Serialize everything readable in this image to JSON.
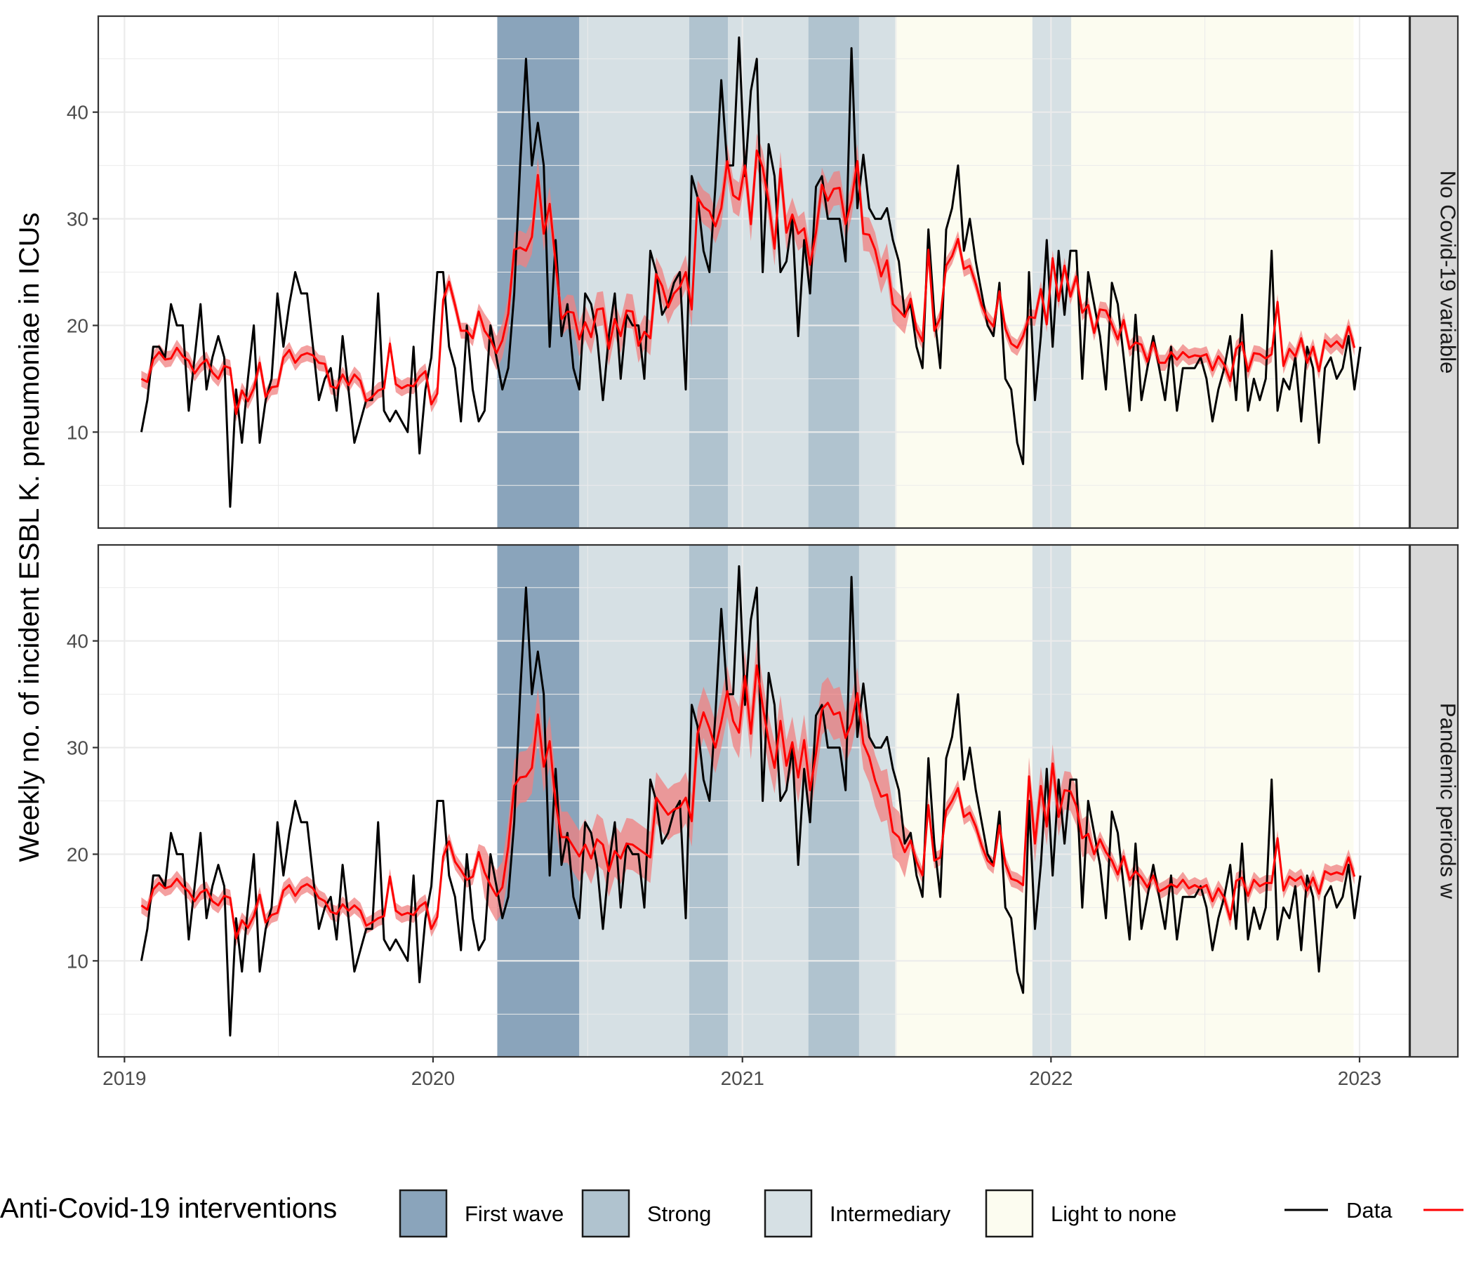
{
  "chart_data": {
    "type": "line",
    "ylabel": "Weekly no. of incident ESBL K. pneumoniae in ICUs",
    "xlabel": "",
    "x_ticks": [
      "2019",
      "2020",
      "2021",
      "2022",
      "2023"
    ],
    "x_range": [
      "2018-12-01",
      "2023-03-01"
    ],
    "y_ticks": [
      10,
      20,
      30,
      40
    ],
    "ylim": [
      1,
      49
    ],
    "grid": true,
    "legend_position": "bottom",
    "colors": {
      "data": "#000000",
      "fit": "#ff0000",
      "fit_band": "#f08080",
      "first_wave": "#8aa4bb",
      "strong": "#b0c3cf",
      "intermediary": "#d6e0e4",
      "light": "#fcfcf0"
    },
    "legend": {
      "title": "Anti-Covid-19 interventions",
      "items": [
        {
          "label": "First wave",
          "color": "#8aa4bb"
        },
        {
          "label": "Strong",
          "color": "#b0c3cf"
        },
        {
          "label": "Intermediary",
          "color": "#d6e0e4"
        },
        {
          "label": "Light to none",
          "color": "#fcfcf0"
        }
      ],
      "data_label": "Data"
    },
    "periods": [
      {
        "type": "first_wave",
        "start": "2020-03-17",
        "end": "2020-06-22"
      },
      {
        "type": "intermediary",
        "start": "2020-06-22",
        "end": "2020-10-30"
      },
      {
        "type": "strong",
        "start": "2020-10-30",
        "end": "2020-12-15"
      },
      {
        "type": "intermediary",
        "start": "2020-12-15",
        "end": "2021-03-20"
      },
      {
        "type": "strong",
        "start": "2021-03-20",
        "end": "2021-05-19"
      },
      {
        "type": "intermediary",
        "start": "2021-05-19",
        "end": "2021-07-01"
      },
      {
        "type": "light",
        "start": "2021-07-01",
        "end": "2021-12-10"
      },
      {
        "type": "intermediary",
        "start": "2021-12-10",
        "end": "2022-01-25"
      },
      {
        "type": "light",
        "start": "2022-01-25",
        "end": "2022-12-25"
      }
    ],
    "x_start": "2019-01-21",
    "x_step_days": 7,
    "panels": [
      {
        "strip": "No Covid-19 variable",
        "series": [
          {
            "kind": "data",
            "values": [
              10,
              13,
              18,
              18,
              17,
              22,
              20,
              20,
              12,
              17,
              22,
              14,
              17,
              19,
              17,
              3,
              14,
              9,
              15,
              20,
              9,
              13,
              15,
              23,
              18,
              22,
              25,
              23,
              23,
              18,
              13,
              15,
              16,
              12,
              19,
              14,
              9,
              11,
              13,
              13,
              23,
              12,
              11,
              12,
              11,
              10,
              18,
              8,
              14,
              17,
              25,
              25,
              18,
              16,
              11,
              20,
              14,
              11,
              12,
              20,
              17,
              14,
              16,
              23,
              35,
              45,
              35,
              39,
              35,
              18,
              28,
              19,
              22,
              16,
              14,
              23,
              22,
              19,
              13,
              19,
              23,
              15,
              21,
              20,
              20,
              15,
              27,
              25,
              21,
              22,
              24,
              25,
              14,
              34,
              32,
              27,
              25,
              33,
              43,
              35,
              35,
              47,
              34,
              42,
              45,
              25,
              37,
              34,
              25,
              26,
              30,
              19,
              28,
              23,
              33,
              34,
              30,
              30,
              30,
              26,
              46,
              31,
              36,
              31,
              30,
              30,
              31,
              28,
              26,
              21,
              22,
              18,
              16,
              29,
              21,
              16,
              29,
              31,
              35,
              27,
              30,
              26,
              23,
              20,
              19,
              24,
              15,
              14,
              9,
              7,
              25,
              13,
              19,
              28,
              18,
              27,
              21,
              27,
              27,
              15,
              25,
              22,
              19,
              14,
              24,
              22,
              17,
              12,
              21,
              13,
              16,
              19,
              16,
              13,
              18,
              12,
              16,
              16,
              16,
              17,
              15,
              11,
              14,
              16,
              19,
              13,
              21,
              12,
              15,
              13,
              15,
              27,
              12,
              15,
              14,
              17,
              11,
              18,
              16,
              9,
              16,
              17,
              15,
              16,
              19,
              14,
              18
            ]
          },
          {
            "kind": "fit",
            "values": [
              15,
              14.7,
              16.8,
              17.5,
              16.8,
              16.9,
              17.9,
              17.1,
              16.7,
              15.5,
              16.3,
              16.8,
              15.6,
              15,
              16.2,
              16,
              11.7,
              13.9,
              12.9,
              14.1,
              16.5,
              13.3,
              14.2,
              14.3,
              17,
              17.7,
              16.5,
              17.2,
              17.4,
              17.2,
              16.5,
              16.4,
              14.3,
              14.1,
              15.4,
              14.4,
              15.4,
              14.8,
              12.9,
              13.3,
              13.9,
              14.1,
              18.3,
              14.5,
              14.1,
              14.4,
              14.3,
              15.2,
              15.7,
              12.6,
              13.6,
              22.4,
              24.1,
              21.9,
              19.5,
              19.5,
              18.8,
              21.3,
              19.5,
              18.7,
              17.4,
              18.6,
              21.1,
              27.1,
              27.3,
              27,
              28.3,
              34.1,
              28.6,
              31.4,
              25.9,
              20.6,
              21.3,
              21.2,
              18.7,
              20.3,
              18.9,
              21.5,
              21.6,
              17.8,
              20.6,
              19,
              21.4,
              21.3,
              18.1,
              19.4,
              18.8,
              24.8,
              23.7,
              21.7,
              23,
              23.6,
              25,
              21.5,
              32,
              31.1,
              30.7,
              29.3,
              31,
              35.4,
              32.2,
              31.8,
              35,
              29.5,
              36.4,
              34.8,
              31.6,
              27.2,
              34.7,
              28.7,
              30.4,
              28.6,
              29.1,
              25.7,
              28.7,
              33.2,
              31.7,
              32.8,
              32.9,
              29.5,
              31.7,
              35.4,
              28.6,
              28.5,
              27.1,
              24.6,
              26.1,
              22,
              21.4,
              20.8,
              22.5,
              19.6,
              18.5,
              27.1,
              19.5,
              20.7,
              25.6,
              26.5,
              28.1,
              25.3,
              25.6,
              23.9,
              21.9,
              20.6,
              19.9,
              23.2,
              19.7,
              18.3,
              17.9,
              19,
              20.8,
              20.7,
              23.4,
              20.1,
              26.3,
              22.3,
              25.6,
              22.7,
              24.6,
              21.2,
              21.9,
              19.3,
              21.5,
              21.4,
              20.1,
              18.7,
              20.5,
              17.8,
              18.4,
              18.2,
              16.6,
              18.4,
              16.5,
              16.5,
              17.5,
              16.8,
              17.5,
              17,
              17.2,
              17.1,
              17.3,
              15.8,
              17.1,
              16.3,
              14.8,
              17.8,
              18.4,
              15.7,
              17.4,
              17.3,
              16.9,
              17.3,
              22.2,
              16.2,
              17.8,
              17.1,
              18.8,
              16.5,
              18,
              15.7,
              18.6,
              18,
              18.5,
              17.9,
              19.9,
              17.9
            ]
          }
        ]
      },
      {
        "strip": "Pandemic periods w",
        "series": [
          {
            "kind": "data",
            "values": [
              10,
              13,
              18,
              18,
              17,
              22,
              20,
              20,
              12,
              17,
              22,
              14,
              17,
              19,
              17,
              3,
              14,
              9,
              15,
              20,
              9,
              13,
              15,
              23,
              18,
              22,
              25,
              23,
              23,
              18,
              13,
              15,
              16,
              12,
              19,
              14,
              9,
              11,
              13,
              13,
              23,
              12,
              11,
              12,
              11,
              10,
              18,
              8,
              14,
              17,
              25,
              25,
              18,
              16,
              11,
              20,
              14,
              11,
              12,
              20,
              17,
              14,
              16,
              23,
              35,
              45,
              35,
              39,
              35,
              18,
              28,
              19,
              22,
              16,
              14,
              23,
              22,
              19,
              13,
              19,
              23,
              15,
              21,
              20,
              20,
              15,
              27,
              25,
              21,
              22,
              24,
              25,
              14,
              34,
              32,
              27,
              25,
              33,
              43,
              35,
              35,
              47,
              34,
              42,
              45,
              25,
              37,
              34,
              25,
              26,
              30,
              19,
              28,
              23,
              33,
              34,
              30,
              30,
              30,
              26,
              46,
              31,
              36,
              31,
              30,
              30,
              31,
              28,
              26,
              21,
              22,
              18,
              16,
              29,
              21,
              16,
              29,
              31,
              35,
              27,
              30,
              26,
              23,
              20,
              19,
              24,
              15,
              14,
              9,
              7,
              25,
              13,
              19,
              28,
              18,
              27,
              21,
              27,
              27,
              15,
              25,
              22,
              19,
              14,
              24,
              22,
              17,
              12,
              21,
              13,
              16,
              19,
              16,
              13,
              18,
              12,
              16,
              16,
              16,
              17,
              15,
              11,
              14,
              16,
              19,
              13,
              21,
              12,
              15,
              13,
              15,
              27,
              12,
              15,
              14,
              17,
              11,
              18,
              16,
              9,
              16,
              17,
              15,
              16,
              19,
              14,
              18
            ]
          },
          {
            "kind": "fit",
            "values": [
              15.2,
              14.8,
              16.7,
              17.3,
              16.8,
              17,
              17.7,
              17,
              16.5,
              15.6,
              16.4,
              16.7,
              15.6,
              15.2,
              16.1,
              15.9,
              12.1,
              13.8,
              13.1,
              14.2,
              16.2,
              13.6,
              14.3,
              14.5,
              16.6,
              17.1,
              16.1,
              16.9,
              17.2,
              16.8,
              15.9,
              15.6,
              14.6,
              14.4,
              15.3,
              14.7,
              15.2,
              14.7,
              13.3,
              13.6,
              14,
              14.2,
              17.9,
              14.7,
              14.3,
              14.5,
              14.3,
              15.1,
              15.5,
              13,
              14.1,
              19.8,
              21.2,
              19.3,
              18.5,
              17.6,
              17.9,
              20.2,
              18.3,
              17.1,
              16.1,
              16.9,
              20.7,
              26.4,
              27.2,
              27.3,
              28.1,
              33.1,
              28.2,
              30.6,
              24.8,
              21.6,
              21.6,
              20.7,
              19.8,
              20.9,
              19.6,
              21.4,
              20.9,
              18.4,
              20.3,
              19.6,
              21,
              20.9,
              20.5,
              20.1,
              19.7,
              25.3,
              24.5,
              23.7,
              24.2,
              24.4,
              25.3,
              23.1,
              31.3,
              33.3,
              31.8,
              30,
              32.4,
              35.3,
              32.5,
              31.4,
              36.7,
              31.3,
              37.7,
              33.9,
              30.6,
              28.1,
              32.5,
              28.3,
              30.5,
              27.2,
              30.7,
              26,
              29.4,
              33.6,
              34.2,
              33.1,
              33.3,
              30.9,
              32.3,
              35.1,
              30.4,
              29.1,
              26.9,
              25.4,
              25.6,
              22.1,
              21.6,
              20.2,
              21.3,
              19.3,
              18,
              24.6,
              19.4,
              19.7,
              24.1,
              25,
              26.2,
              23.5,
              23.9,
              22.6,
              20.8,
              19.4,
              18.9,
              22.7,
              19.1,
              17.7,
              17.5,
              17.1,
              27.3,
              21,
              26.4,
              22.6,
              28.5,
              23.5,
              26,
              25.9,
              24.5,
              21.5,
              21.9,
              20,
              21.4,
              20.2,
              19.4,
              18.1,
              19.8,
              17.6,
              18.4,
              17.8,
              16.9,
              18,
              16.5,
              16.8,
              17.2,
              16.9,
              17.6,
              16.8,
              17.1,
              16.8,
              17.1,
              15.6,
              16.8,
              15.9,
              13.9,
              17.5,
              17.8,
              16.1,
              17.6,
              17,
              17.3,
              17.3,
              21.5,
              16.6,
              17.9,
              17.5,
              17.9,
              16.6,
              17.8,
              16.3,
              18.4,
              18.1,
              18.3,
              18.1,
              19.7,
              17.9
            ]
          }
        ]
      }
    ]
  }
}
